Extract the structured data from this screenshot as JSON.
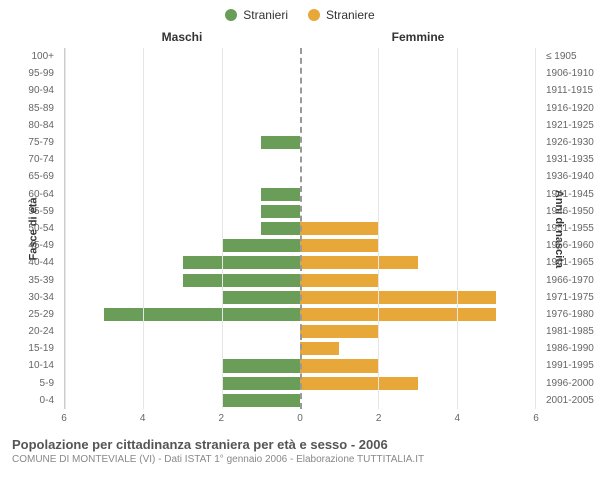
{
  "legend": {
    "male_label": "Stranieri",
    "female_label": "Straniere",
    "male_color": "#6a9e58",
    "female_color": "#e8a839"
  },
  "section_labels": {
    "left": "Maschi",
    "right": "Femmine"
  },
  "axis_titles": {
    "left": "Fasce di età",
    "right": "Anni di nascita"
  },
  "chart": {
    "type": "bar",
    "xlim": [
      0,
      6
    ],
    "xticks": [
      0,
      2,
      4,
      6
    ],
    "grid_color": "#e6e6e6",
    "zero_color": "#999999",
    "male_color": "#6a9e58",
    "female_color": "#e8a839",
    "background_color": "#ffffff",
    "label_fontsize": 10,
    "categories": [
      {
        "age": "100+",
        "birth": "≤ 1905",
        "m": 0,
        "f": 0
      },
      {
        "age": "95-99",
        "birth": "1906-1910",
        "m": 0,
        "f": 0
      },
      {
        "age": "90-94",
        "birth": "1911-1915",
        "m": 0,
        "f": 0
      },
      {
        "age": "85-89",
        "birth": "1916-1920",
        "m": 0,
        "f": 0
      },
      {
        "age": "80-84",
        "birth": "1921-1925",
        "m": 0,
        "f": 0
      },
      {
        "age": "75-79",
        "birth": "1926-1930",
        "m": 1,
        "f": 0
      },
      {
        "age": "70-74",
        "birth": "1931-1935",
        "m": 0,
        "f": 0
      },
      {
        "age": "65-69",
        "birth": "1936-1940",
        "m": 0,
        "f": 0
      },
      {
        "age": "60-64",
        "birth": "1941-1945",
        "m": 1,
        "f": 0
      },
      {
        "age": "55-59",
        "birth": "1946-1950",
        "m": 1,
        "f": 0
      },
      {
        "age": "50-54",
        "birth": "1951-1955",
        "m": 1,
        "f": 2
      },
      {
        "age": "45-49",
        "birth": "1956-1960",
        "m": 2,
        "f": 2
      },
      {
        "age": "40-44",
        "birth": "1961-1965",
        "m": 3,
        "f": 3
      },
      {
        "age": "35-39",
        "birth": "1966-1970",
        "m": 3,
        "f": 2
      },
      {
        "age": "30-34",
        "birth": "1971-1975",
        "m": 2,
        "f": 5
      },
      {
        "age": "25-29",
        "birth": "1976-1980",
        "m": 5,
        "f": 5
      },
      {
        "age": "20-24",
        "birth": "1981-1985",
        "m": 0,
        "f": 2
      },
      {
        "age": "15-19",
        "birth": "1986-1990",
        "m": 0,
        "f": 1
      },
      {
        "age": "10-14",
        "birth": "1991-1995",
        "m": 2,
        "f": 2
      },
      {
        "age": "5-9",
        "birth": "1996-2000",
        "m": 2,
        "f": 3
      },
      {
        "age": "0-4",
        "birth": "2001-2005",
        "m": 2,
        "f": 0
      }
    ]
  },
  "footer": {
    "title": "Popolazione per cittadinanza straniera per età e sesso - 2006",
    "subtitle": "COMUNE DI MONTEVIALE (VI) - Dati ISTAT 1° gennaio 2006 - Elaborazione TUTTITALIA.IT"
  }
}
